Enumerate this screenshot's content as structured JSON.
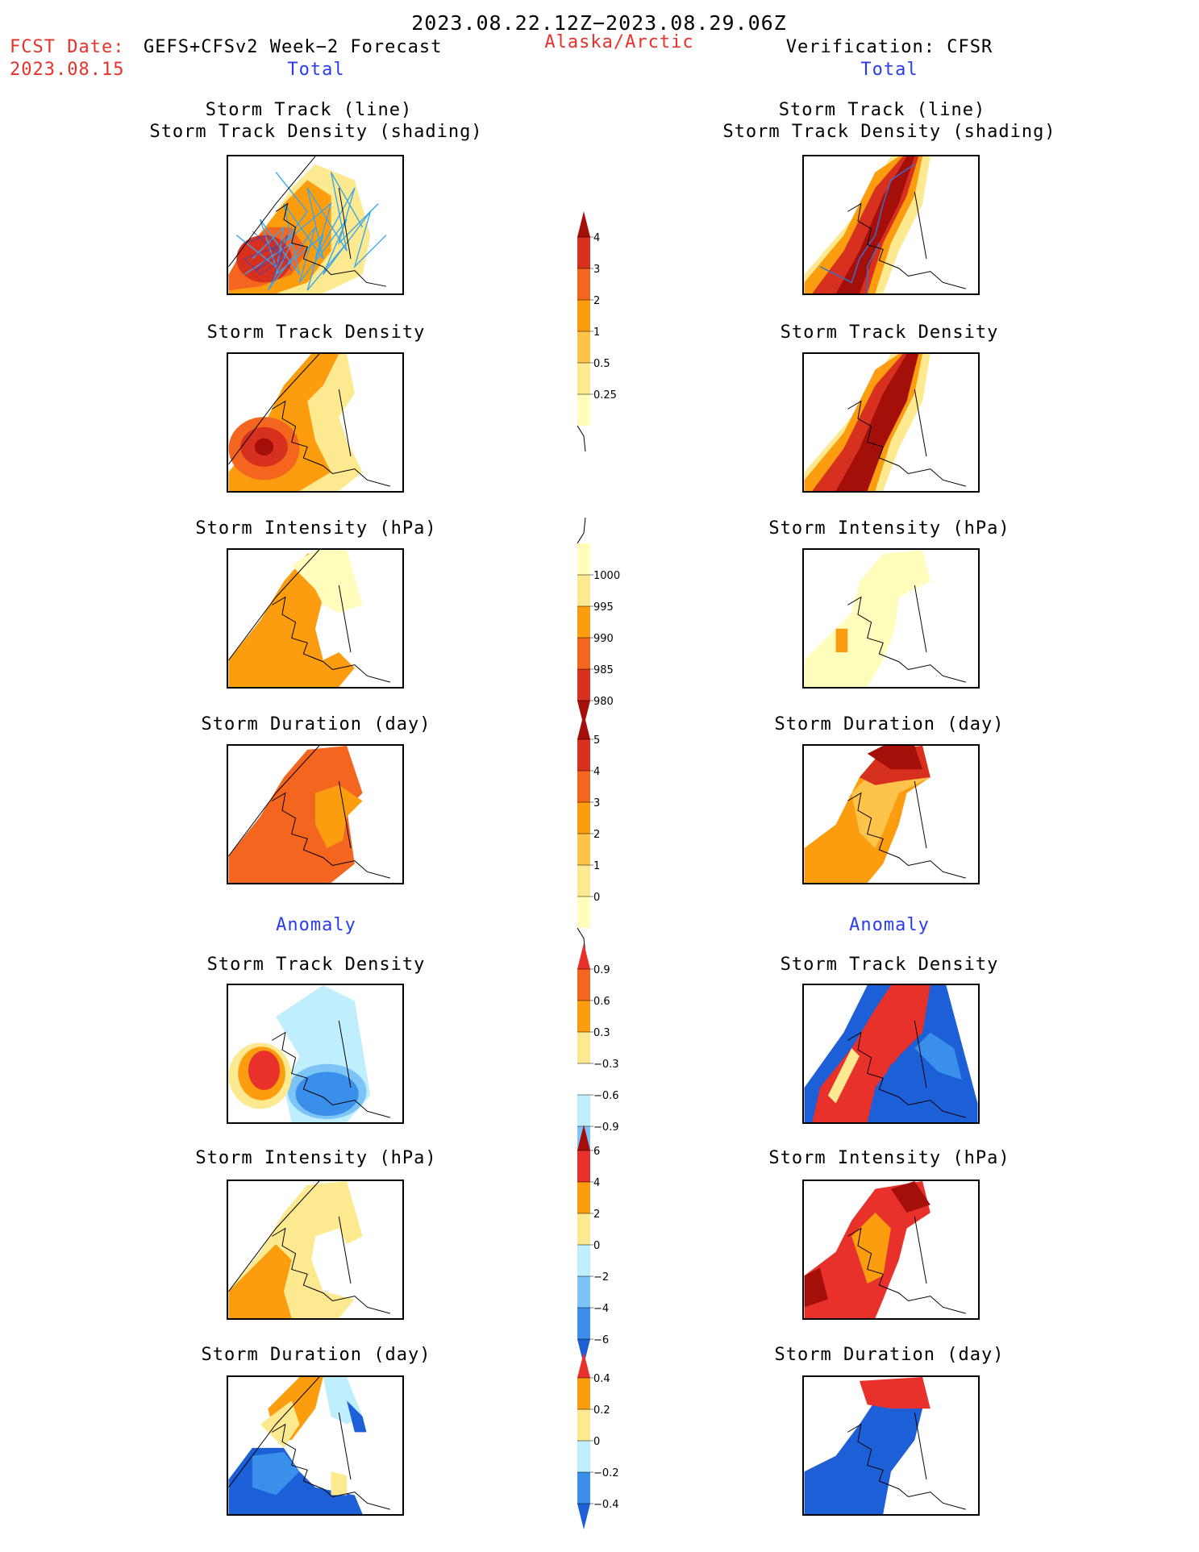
{
  "header": {
    "period": "2023.08.22.12Z−2023.08.29.06Z",
    "fcst_label": "FCST Date:",
    "fcst_model": "GEFS+CFSv2 Week−2 Forecast",
    "fcst_date": "2023.08.15",
    "region": "Alaska/Arctic",
    "verification": "Verification: CFSR"
  },
  "sections": {
    "total_left": "Total",
    "total_right": "Total",
    "anomaly_left": "Anomaly",
    "anomaly_right": "Anomaly"
  },
  "titles": {
    "track_line": "Storm Track (line)",
    "track_density_shading": "Storm Track Density (shading)",
    "track_density": "Storm Track Density",
    "intensity": "Storm Intensity (hPa)",
    "duration": "Storm Duration (day)"
  },
  "colorbars": [
    {
      "name": "density-total",
      "ticks": [
        "4",
        "3",
        "2",
        "1",
        "0.5",
        "0.25"
      ],
      "colors": [
        "#a50f0a",
        "#d7301f",
        "#f4651f",
        "#fb9d0f",
        "#fdc34a",
        "#fde98f",
        "#fffcbc"
      ]
    },
    {
      "name": "intensity-total",
      "ticks": [
        "1000",
        "995",
        "990",
        "985",
        "980"
      ],
      "colors": [
        "#fffcbc",
        "#fde98f",
        "#fb9d0f",
        "#f4651f",
        "#d7301f",
        "#a50f0a"
      ]
    },
    {
      "name": "duration-total",
      "ticks": [
        "5",
        "4",
        "3",
        "2",
        "1",
        "0"
      ],
      "colors": [
        "#a50f0a",
        "#d7301f",
        "#f4651f",
        "#fb9d0f",
        "#fdc34a",
        "#fde98f",
        "#fffcbc"
      ]
    },
    {
      "name": "density-anomaly",
      "ticks": [
        "0.9",
        "0.6",
        "0.3",
        "−0.3",
        "−0.6",
        "−0.9"
      ],
      "colors": [
        "#e8312a",
        "#f4651f",
        "#fb9d0f",
        "#fde98f",
        "#ffffff",
        "#bfeefc",
        "#7cc4f7",
        "#3a8fea",
        "#1c5fd6"
      ]
    },
    {
      "name": "intensity-anomaly",
      "ticks": [
        "6",
        "4",
        "2",
        "0",
        "−2",
        "−4",
        "−6"
      ],
      "colors": [
        "#a50f0a",
        "#e8312a",
        "#fb9d0f",
        "#fde98f",
        "#bfeefc",
        "#7cc4f7",
        "#3a8fea",
        "#1c5fd6"
      ]
    },
    {
      "name": "duration-anomaly",
      "ticks": [
        "0.4",
        "0.2",
        "0",
        "−0.2",
        "−0.4"
      ],
      "colors": [
        "#e8312a",
        "#fb9d0f",
        "#fde98f",
        "#bfeefc",
        "#3a8fea",
        "#1c5fd6"
      ]
    }
  ]
}
